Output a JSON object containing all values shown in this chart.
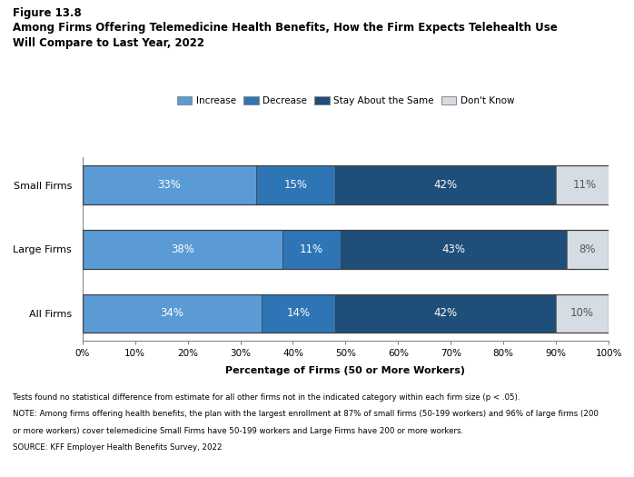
{
  "title_line1": "Figure 13.8",
  "title_line2": "Among Firms Offering Telemedicine Health Benefits, How the Firm Expects Telehealth Use",
  "title_line3": "Will Compare to Last Year, 2022",
  "categories": [
    "Small Firms",
    "Large Firms",
    "All Firms"
  ],
  "series": [
    {
      "name": "Increase",
      "values": [
        33,
        38,
        34
      ],
      "color": "#5B9BD5"
    },
    {
      "name": "Decrease",
      "values": [
        15,
        11,
        14
      ],
      "color": "#2E75B6"
    },
    {
      "name": "Stay About the Same",
      "values": [
        42,
        43,
        42
      ],
      "color": "#1F4E79"
    },
    {
      "name": "Don't Know",
      "values": [
        11,
        8,
        10
      ],
      "color": "#D6DCE4"
    }
  ],
  "xlabel": "Percentage of Firms (50 or More Workers)",
  "xlim": [
    0,
    100
  ],
  "xticks": [
    0,
    10,
    20,
    30,
    40,
    50,
    60,
    70,
    80,
    90,
    100
  ],
  "xtick_labels": [
    "0%",
    "10%",
    "20%",
    "30%",
    "40%",
    "50%",
    "60%",
    "70%",
    "80%",
    "90%",
    "100%"
  ],
  "footnote1": "Tests found no statistical difference from estimate for all other firms not in the indicated category within each firm size (p < .05).",
  "footnote2": "NOTE: Among firms offering health benefits, the plan with the largest enrollment at 87% of small firms (50-199 workers) and 96% of large firms (200",
  "footnote3": "or more workers) cover telemedicine Small Firms have 50-199 workers and Large Firms have 200 or more workers.",
  "footnote4": "SOURCE: KFF Employer Health Benefits Survey, 2022",
  "bar_height": 0.6,
  "bar_text_color_dark": "#FFFFFF",
  "bar_text_color_light": "#555555",
  "background_color": "#FFFFFF",
  "legend_colors": [
    "#5B9BD5",
    "#2E75B6",
    "#1F4E79",
    "#D6DCE4"
  ],
  "legend_labels": [
    "Increase",
    "Decrease",
    "Stay About the Same",
    "Don't Know"
  ],
  "border_color": "#404040"
}
